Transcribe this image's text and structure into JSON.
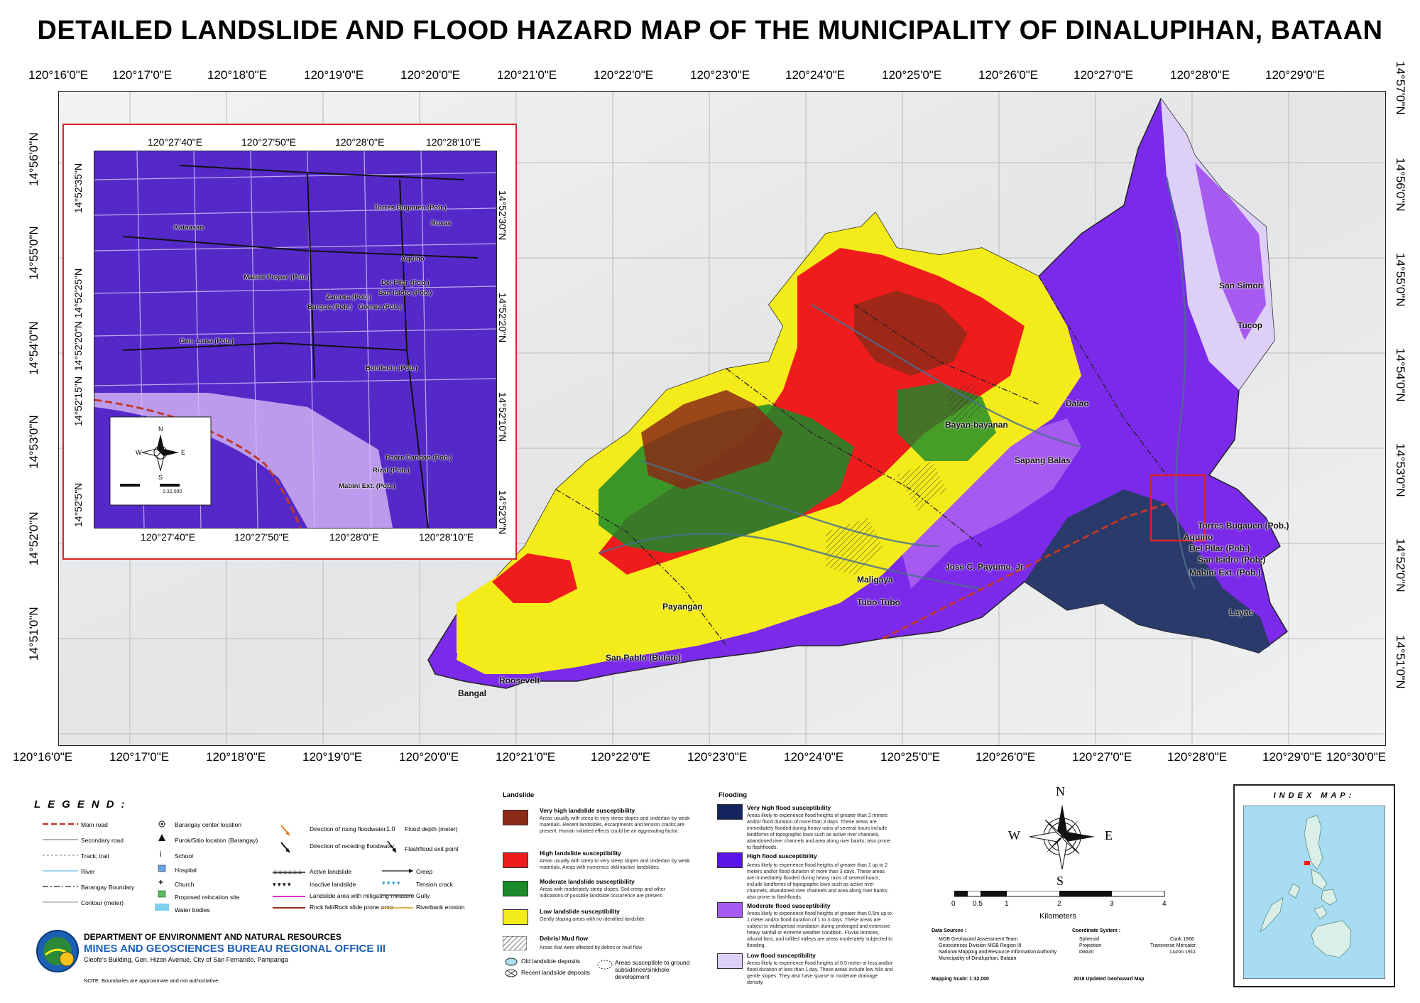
{
  "title": "DETAILED LANDSLIDE AND FLOOD HAZARD MAP OF THE MUNICIPALITY OF DINALUPIHAN, BATAAN",
  "longitudes": [
    "120°16'0\"E",
    "120°17'0\"E",
    "120°18'0\"E",
    "120°19'0\"E",
    "120°20'0\"E",
    "120°21'0\"E",
    "120°22'0\"E",
    "120°23'0\"E",
    "120°24'0\"E",
    "120°25'0\"E",
    "120°26'0\"E",
    "120°27'0\"E",
    "120°28'0\"E",
    "120°29'0\"E",
    "120°30'0\"E"
  ],
  "latitudes": [
    "14°57'0\"N",
    "14°56'0\"N",
    "14°55'0\"N",
    "14°54'0\"N",
    "14°53'0\"N",
    "14°52'0\"N",
    "14°51'0\"N"
  ],
  "inset": {
    "top_lon": [
      "120°27'40\"E",
      "120°27'50\"E",
      "120°28'0\"E",
      "120°28'10\"E"
    ],
    "left_lat": [
      "14°52'35\"N",
      "14°52'25\"N",
      "14°52'20\"N",
      "14°52'15\"N",
      "14°52'5\"N"
    ],
    "right_lat": [
      "14°52'30\"N",
      "14°52'20\"N",
      "14°52'10\"N",
      "14°52'0\"N"
    ],
    "places": [
      "Torres Bugauen (Pob.)",
      "Roxas",
      "Kataasan",
      "Aquino",
      "Del Pilar (Pob.)",
      "San Isidro (Pob.)",
      "Mabini Proper (Pob.)",
      "Zamora (Pob.)",
      "Burgos (Pob.)",
      "Gomez (Pob.)",
      "Gen. Luna (Pob.)",
      "Bonifacio (Pob.)",
      "Padre Dandan (Pob.)",
      "Rizal (Pob.)",
      "Mabini Ext. (Pob.)"
    ],
    "scale_text": "1:32,000"
  },
  "places": [
    "San Simon",
    "Tucop",
    "Dalao",
    "Bayan-bayanan",
    "Sapang Balas",
    "Torres Bugauen (Pob.)",
    "Aquino",
    "Del Pilar (Pob.)",
    "San Isidro (Pob.)",
    "Mabini Ext. (Pob.)",
    "Layac",
    "Jose C. Payumo, Jr.",
    "Maligaya",
    "Tubo-Tubo",
    "Payangan",
    "San Pablo (Bulate)",
    "Roosevelt",
    "Bangal"
  ],
  "legend": {
    "title": "LEGEND:",
    "col1": [
      "Main road",
      "Secondary road",
      "Track; trail",
      "River",
      "Barangay Boundary",
      "Contour (meter)"
    ],
    "col2": [
      "Barangay center location",
      "Purok/Sitio location (Barangay)",
      "School",
      "Hospital",
      "Church",
      "Proposed relocation site",
      "Water bodies"
    ],
    "col3": [
      "Direction of rising floodwater",
      "Direction of receding floodwater",
      "Active landslide",
      "Inactive landslide",
      "Landslide area with mitigating measure",
      "Rock fall/Rock slide prone area"
    ],
    "col4": [
      "Flood depth (meter)",
      "Flashflood exit point",
      "Creep",
      "Tension crack",
      "Gully",
      "Riverbank erosion"
    ]
  },
  "landslide": {
    "heading": "Landslide",
    "classes": [
      {
        "name": "Very high landslide susceptibility",
        "color": "#8b2a17",
        "desc": "Areas usually with steep to very steep slopes and underlain by weak materials. Recent landslides, escarpments and tension cracks are present. Human initiated effects could be an aggravating factor."
      },
      {
        "name": "High landslide susceptibility",
        "color": "#ee1c1c",
        "desc": "Areas usually with steep to very steep slopes and underlain by weak materials. Areas with numerous old/inactive landslides."
      },
      {
        "name": "Moderate landslide susceptibility",
        "color": "#1a8a2a",
        "desc": "Areas with moderately steep slopes. Soil creep and other indications of possible landslide occurrence are present."
      },
      {
        "name": "Low landslide susceptibility",
        "color": "#f4ec1a",
        "desc": "Gently sloping areas with no identified landslide."
      }
    ],
    "debris": {
      "name": "Debris/ Mud flow",
      "desc": "Areas that were affected by debris or mud flow"
    },
    "extras": [
      "Old landslide deposits",
      "Recent landslide deposits",
      "Areas susceptible to ground subsidence/sinkhole development"
    ]
  },
  "flooding": {
    "heading": "Flooding",
    "classes": [
      {
        "name": "Very high flood susceptibility",
        "color": "#15245e",
        "desc": "Areas likely to experience flood heights of greater than 2 meters and/or flood duration of more than 3 days. These areas are immediately flooded during heavy rains of several hours include landforms of topographic lows such as active river channels, abandoned river channels and area along river banks; also prone to flashfloods."
      },
      {
        "name": "High flood susceptibility",
        "color": "#5a16e6",
        "desc": "Areas likely to experience flood heights of greater than 1 up to 2 meters and/or flood duration of more than 3 days. These areas are immediately flooded during heavy rains of several hours; include landforms of topographic lows such as active river channels, abandoned river channels and area along river banks; also prone to flashfloods."
      },
      {
        "name": "Moderate flood susceptibility",
        "color": "#a65af0",
        "desc": "Areas likely to experience flood heights of greater than 0.5m up to 1 meter and/or flood duration of 1 to 3 days. These areas are subject to widespread inundation during prolonged and extensive heavy rainfall or extreme weather condition. Fluvial terraces, alluvial fans, and infilled valleys are areas moderately subjected to flooding."
      },
      {
        "name": "Low flood susceptibility",
        "color": "#ddd0f7",
        "desc": "Areas likely to experience flood heights of 0.5 meter or less and/or flood duration of less than 1 day. These areas include low hills and gentle slopes. They also have sparse to moderate drainage density."
      }
    ]
  },
  "scale": {
    "ticks": [
      "0",
      "0.5",
      "1",
      "2",
      "3",
      "4"
    ],
    "unit": "Kilometers",
    "mapping_scale": "Mapping Scale: 1:32,000"
  },
  "data_sources": {
    "heading": "Data Sources :",
    "lines": [
      "MGB Geohazard Assessment Team",
      "Geosciences Division MGB Region III",
      "National Mapping and Resource Information Authority",
      "Municipality of Dinalupihan, Bataan"
    ]
  },
  "coord_system": {
    "heading": "Coordinate System :",
    "rows": [
      [
        "Spheroid",
        "Clark 1866"
      ],
      [
        "Projection",
        "Transverse Mercator"
      ],
      [
        "Datum",
        "Luzon 1911"
      ]
    ],
    "updated": "2018 Updated Geohazard Map"
  },
  "agency": {
    "dept": "DEPARTMENT OF ENVIRONMENT AND NATURAL RESOURCES",
    "bureau": "MINES AND GEOSCIENCES BUREAU REGIONAL OFFICE III",
    "address": "Cleofe's Building, Gen. Hizon Avenue, City of San Fernando, Pampanga",
    "note": "NOTE: Boundaries are approximate and not authoritative."
  },
  "compass": {
    "n": "N",
    "e": "E",
    "s": "S",
    "w": "W"
  },
  "index_map": {
    "title": "INDEX MAP:"
  }
}
